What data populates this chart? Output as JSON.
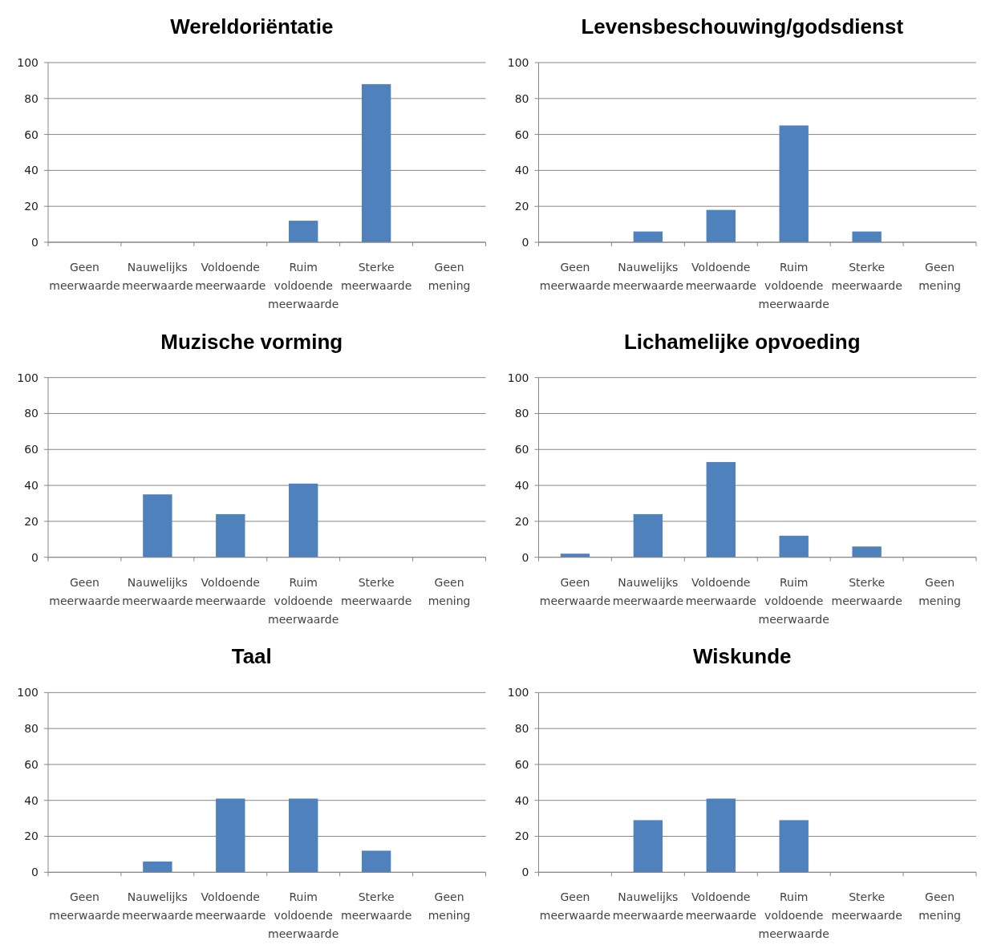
{
  "chart_data": [
    {
      "type": "bar",
      "title": "Wereldoriëntatie",
      "categories": [
        "Geen meerwaarde",
        "Nauwelijks meerwaarde",
        "Voldoende meerwaarde",
        "Ruim voldoende meerwaarde",
        "Sterke meerwaarde",
        "Geen mening"
      ],
      "values": [
        0,
        0,
        0,
        12,
        88,
        0
      ],
      "color": "#4f81bd",
      "ylim": [
        0,
        100
      ],
      "yticks": [
        0,
        20,
        40,
        60,
        80,
        100
      ],
      "grid": "y"
    },
    {
      "type": "bar",
      "title": "Levensbeschouwing/godsdienst",
      "categories": [
        "Geen meerwaarde",
        "Nauwelijks meerwaarde",
        "Voldoende meerwaarde",
        "Ruim voldoende meerwaarde",
        "Sterke meerwaarde",
        "Geen mening"
      ],
      "values": [
        0,
        6,
        18,
        65,
        6,
        0
      ],
      "color": "#4f81bd",
      "ylim": [
        0,
        100
      ],
      "yticks": [
        0,
        20,
        40,
        60,
        80,
        100
      ],
      "grid": "y"
    },
    {
      "type": "bar",
      "title": "Muzische vorming",
      "categories": [
        "Geen meerwaarde",
        "Nauwelijks meerwaarde",
        "Voldoende meerwaarde",
        "Ruim voldoende meerwaarde",
        "Sterke meerwaarde",
        "Geen mening"
      ],
      "values": [
        0,
        35,
        24,
        41,
        0,
        0
      ],
      "color": "#4f81bd",
      "ylim": [
        0,
        100
      ],
      "yticks": [
        0,
        20,
        40,
        60,
        80,
        100
      ],
      "grid": "y"
    },
    {
      "type": "bar",
      "title": "Lichamelijke opvoeding",
      "categories": [
        "Geen meerwaarde",
        "Nauwelijks meerwaarde",
        "Voldoende meerwaarde",
        "Ruim voldoende meerwaarde",
        "Sterke meerwaarde",
        "Geen mening"
      ],
      "values": [
        2,
        24,
        53,
        12,
        6,
        0
      ],
      "color": "#4f81bd",
      "ylim": [
        0,
        100
      ],
      "yticks": [
        0,
        20,
        40,
        60,
        80,
        100
      ],
      "grid": "y"
    },
    {
      "type": "bar",
      "title": "Taal",
      "categories": [
        "Geen meerwaarde",
        "Nauwelijks meerwaarde",
        "Voldoende meerwaarde",
        "Ruim voldoende meerwaarde",
        "Sterke meerwaarde",
        "Geen mening"
      ],
      "values": [
        0,
        6,
        41,
        41,
        12,
        0
      ],
      "color": "#4f81bd",
      "ylim": [
        0,
        100
      ],
      "yticks": [
        0,
        20,
        40,
        60,
        80,
        100
      ],
      "grid": "y"
    },
    {
      "type": "bar",
      "title": "Wiskunde",
      "categories": [
        "Geen meerwaarde",
        "Nauwelijks meerwaarde",
        "Voldoende meerwaarde",
        "Ruim voldoende meerwaarde",
        "Sterke meerwaarde",
        "Geen mening"
      ],
      "values": [
        0,
        29,
        41,
        29,
        0,
        0
      ],
      "color": "#4f81bd",
      "ylim": [
        0,
        100
      ],
      "yticks": [
        0,
        20,
        40,
        60,
        80,
        100
      ],
      "grid": "y"
    }
  ]
}
